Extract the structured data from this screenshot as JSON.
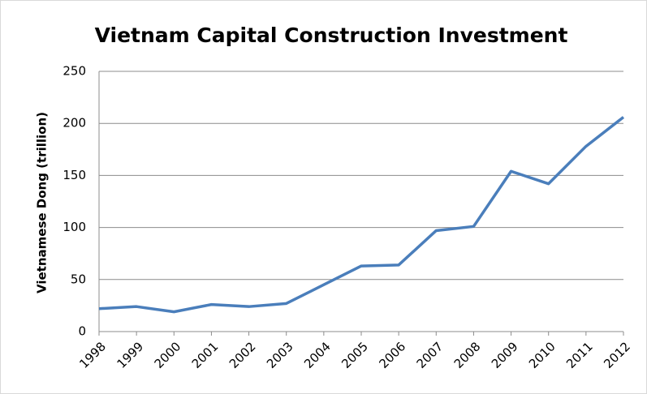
{
  "chart_data": {
    "type": "line",
    "title": "Vietnam Capital Construction Investment",
    "y_label": "Vietnamese Dong (trillion)",
    "categories": [
      "1998",
      "1999",
      "2000",
      "2001",
      "2002",
      "2003",
      "2004",
      "2005",
      "2006",
      "2007",
      "2008",
      "2009",
      "2010",
      "2011",
      "2012"
    ],
    "values": [
      22,
      24,
      19,
      26,
      24,
      27,
      45,
      63,
      64,
      97,
      101,
      154,
      142,
      178,
      206
    ],
    "color": "#4a7ebb",
    "ylim": [
      0,
      250
    ],
    "yticks": [
      0,
      50,
      100,
      150,
      200,
      250
    ],
    "grid": true
  }
}
